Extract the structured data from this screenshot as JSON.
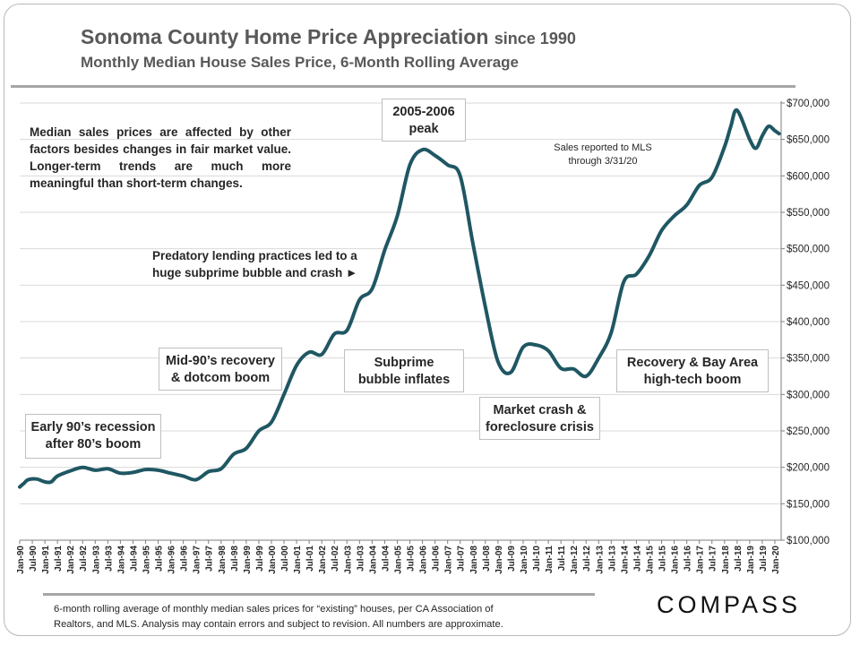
{
  "header": {
    "title_main": "Sonoma County Home Price Appreciation",
    "title_suffix": "since 1990",
    "subtitle": "Monthly Median House Sales Price, 6-Month Rolling Average"
  },
  "annotations": {
    "intro": "Median sales prices are affected by other factors besides changes in fair market value. Longer-term trends are much more meaningful than short-term changes.",
    "predatory_line1": "Predatory lending practices led to a",
    "predatory_line2": "huge subprime bubble and crash ►",
    "peak_line1": "2005-2006",
    "peak_line2": "peak",
    "mls_line1": "Sales reported to MLS",
    "mls_line2": "through 3/31/20",
    "early90s_line1": "Early 90’s recession",
    "early90s_line2": "after 80’s boom",
    "mid90s_line1": "Mid-90’s recovery",
    "mid90s_line2": "& dotcom boom",
    "subprime_line1": "Subprime",
    "subprime_line2": "bubble inflates",
    "crash_line1": "Market crash &",
    "crash_line2": "foreclosure crisis",
    "recovery_line1": "Recovery & Bay Area",
    "recovery_line2": "high-tech boom"
  },
  "footer": {
    "line1": "6-month rolling average of monthly median sales prices for “existing” houses, per CA Association of",
    "line2": "Realtors, and MLS.  Analysis may contain errors and subject to revision. All numbers are approximate."
  },
  "brand": {
    "logo": "COMPASS"
  },
  "colors": {
    "line": "#1f5763",
    "grid": "#d9d9d9",
    "text": "#262626",
    "title": "#595959"
  },
  "chart_data": {
    "type": "line",
    "title": "Sonoma County Home Price Appreciation since 1990",
    "subtitle": "Monthly Median House Sales Price, 6-Month Rolling Average",
    "xlabel": "",
    "ylabel": "",
    "ylim": [
      100000,
      700000
    ],
    "y_ticks": [
      100000,
      150000,
      200000,
      250000,
      300000,
      350000,
      400000,
      450000,
      500000,
      550000,
      600000,
      650000,
      700000
    ],
    "y_tick_labels": [
      "$100,000",
      "$150,000",
      "$200,000",
      "$250,000",
      "$300,000",
      "$350,000",
      "$400,000",
      "$450,000",
      "$500,000",
      "$550,000",
      "$600,000",
      "$650,000",
      "$700,000"
    ],
    "y_axis_side": "right",
    "grid": "horizontal",
    "x_tick_labels": [
      "Jan-90",
      "Jul-90",
      "Jan-91",
      "Jul-91",
      "Jan-92",
      "Jul-92",
      "Jan-93",
      "Jul-93",
      "Jan-94",
      "Jul-94",
      "Jan-95",
      "Jul-95",
      "Jan-96",
      "Jul-96",
      "Jan-97",
      "Jul-97",
      "Jan-98",
      "Jul-98",
      "Jan-99",
      "Jul-99",
      "Jan-00",
      "Jul-00",
      "Jan-01",
      "Jul-01",
      "Jan-02",
      "Jul-02",
      "Jan-03",
      "Jul-03",
      "Jan-04",
      "Jul-04",
      "Jan-05",
      "Jul-05",
      "Jan-06",
      "Jul-06",
      "Jan-07",
      "Jul-07",
      "Jan-08",
      "Jul-08",
      "Jan-09",
      "Jul-09",
      "Jan-10",
      "Jul-10",
      "Jan-11",
      "Jul-11",
      "Jan-12",
      "Jul-12",
      "Jan-13",
      "Jul-13",
      "Jan-14",
      "Jul-14",
      "Jan-15",
      "Jul-15",
      "Jan-16",
      "Jul-16",
      "Jan-17",
      "Jul-17",
      "Jan-18",
      "Jul-18",
      "Jan-19",
      "Jul-19",
      "Jan-20"
    ],
    "series": [
      {
        "x": [
          "Jan-90",
          "Mar-90",
          "May-90",
          "Sep-90",
          "Jan-91",
          "Apr-91",
          "Jul-91",
          "Jan-92",
          "Jul-92",
          "Jan-93",
          "Jul-93",
          "Jan-94",
          "Jul-94",
          "Jan-95",
          "Jul-95",
          "Jan-96",
          "Jul-96",
          "Jan-97",
          "Jul-97",
          "Jan-98",
          "Jul-98",
          "Jan-99",
          "Jul-99",
          "Jan-00",
          "Jul-00",
          "Jan-01",
          "Jul-01",
          "Jan-02",
          "Jul-02",
          "Jan-03",
          "Jul-03",
          "Jan-04",
          "Jul-04",
          "Jan-05",
          "Jul-05",
          "Jan-06",
          "Jul-06",
          "Jan-07",
          "Jul-07",
          "Jan-08",
          "Jul-08",
          "Jan-09",
          "Jul-09",
          "Jan-10",
          "Jul-10",
          "Jan-11",
          "Jul-11",
          "Jan-12",
          "Jul-12",
          "Jan-13",
          "Jul-13",
          "Jan-14",
          "Jul-14",
          "Jan-15",
          "Jul-15",
          "Jan-16",
          "Jul-16",
          "Jan-17",
          "Jul-17",
          "Jan-18",
          "Apr-18",
          "Jul-18",
          "Jan-19",
          "Apr-19",
          "Jul-19",
          "Oct-19",
          "Jan-20",
          "Mar-20"
        ],
        "values": [
          173000,
          178000,
          183000,
          184000,
          180000,
          180000,
          188000,
          195000,
          200000,
          196000,
          198000,
          192000,
          193000,
          197000,
          196000,
          192000,
          188000,
          183000,
          194000,
          198000,
          218000,
          226000,
          250000,
          262000,
          300000,
          340000,
          358000,
          355000,
          383000,
          388000,
          430000,
          445000,
          498000,
          545000,
          615000,
          636000,
          628000,
          615000,
          600000,
          508000,
          420000,
          345000,
          330000,
          365000,
          368000,
          360000,
          336000,
          335000,
          325000,
          350000,
          385000,
          455000,
          465000,
          490000,
          525000,
          545000,
          560000,
          587000,
          598000,
          640000,
          668000,
          690000,
          650000,
          638000,
          655000,
          668000,
          662000,
          658000
        ]
      }
    ]
  }
}
